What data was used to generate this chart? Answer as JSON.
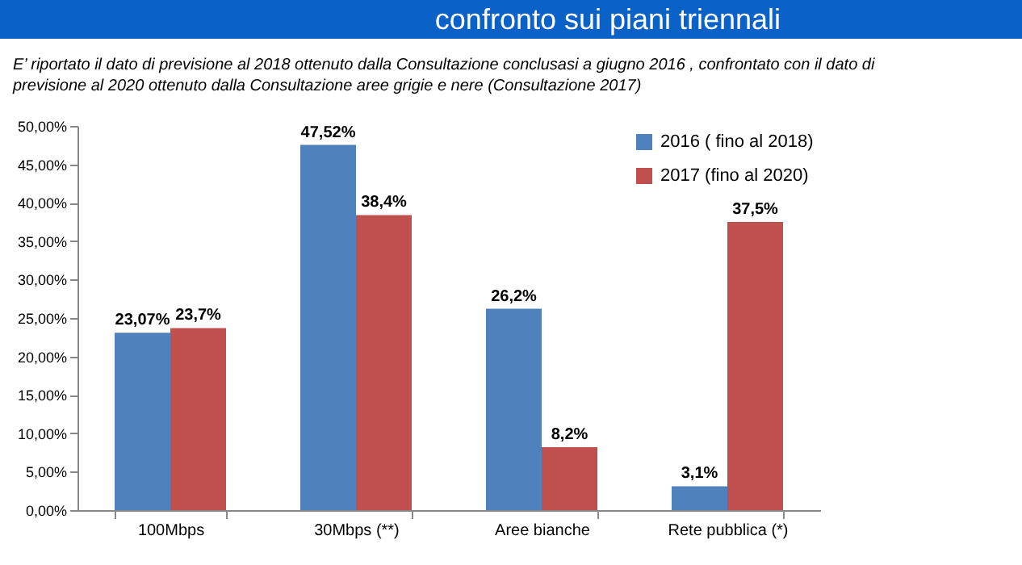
{
  "chart_data": {
    "type": "bar",
    "title": "confronto sui piani triennali",
    "subtitle": "E’ riportato il dato di previsione al 2018 ottenuto dalla Consultazione conclusasi a giugno 2016 , confrontato con il dato di previsione al 2020 ottenuto  dalla Consultazione aree grigie e nere (Consultazione 2017)",
    "categories": [
      "100Mbps",
      "30Mbps (**)",
      "Aree bianche",
      "Rete pubblica (*)"
    ],
    "series": [
      {
        "name": "2016 ( fino al 2018)",
        "color": "#4f81bd",
        "values": [
          23.07,
          47.52,
          26.2,
          3.1
        ],
        "value_labels": [
          "23,07%",
          "47,52%",
          "26,2%",
          "3,1%"
        ]
      },
      {
        "name": "2017 (fino al 2020)",
        "color": "#c0504d",
        "values": [
          23.7,
          38.4,
          8.2,
          37.5
        ],
        "value_labels": [
          "23,7%",
          "38,4%",
          "8,2%",
          "37,5%"
        ]
      }
    ],
    "ylim": [
      0,
      50
    ],
    "yticks": [
      {
        "value": 0,
        "label": "0,00%"
      },
      {
        "value": 5,
        "label": "5,00%"
      },
      {
        "value": 10,
        "label": "10,00%"
      },
      {
        "value": 15,
        "label": "15,00%"
      },
      {
        "value": 20,
        "label": "20,00%"
      },
      {
        "value": 25,
        "label": "25,00%"
      },
      {
        "value": 30,
        "label": "30,00%"
      },
      {
        "value": 35,
        "label": "35,00%"
      },
      {
        "value": 40,
        "label": "40,00%"
      },
      {
        "value": 45,
        "label": "45,00%"
      },
      {
        "value": 50,
        "label": "50,00%"
      }
    ],
    "grid": false,
    "legend": "top right"
  }
}
